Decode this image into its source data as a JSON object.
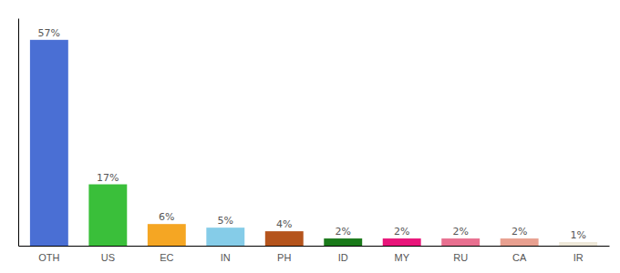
{
  "chart_data": {
    "type": "bar",
    "categories": [
      "OTH",
      "US",
      "EC",
      "IN",
      "PH",
      "ID",
      "MY",
      "RU",
      "CA",
      "IR"
    ],
    "values": [
      57,
      17,
      6,
      5,
      4,
      2,
      2,
      2,
      2,
      1
    ],
    "value_labels": [
      "57%",
      "17%",
      "6%",
      "5%",
      "4%",
      "2%",
      "2%",
      "2%",
      "2%",
      "1%"
    ],
    "colors": [
      "#4a6fd4",
      "#3abf3a",
      "#f5a623",
      "#85cce8",
      "#b5541c",
      "#1a7a1a",
      "#e8157a",
      "#e87090",
      "#e8a090",
      "#eee8d8"
    ],
    "ylim": [
      0,
      63
    ],
    "data_labels": true,
    "tick_labels": "x",
    "grid": false
  }
}
